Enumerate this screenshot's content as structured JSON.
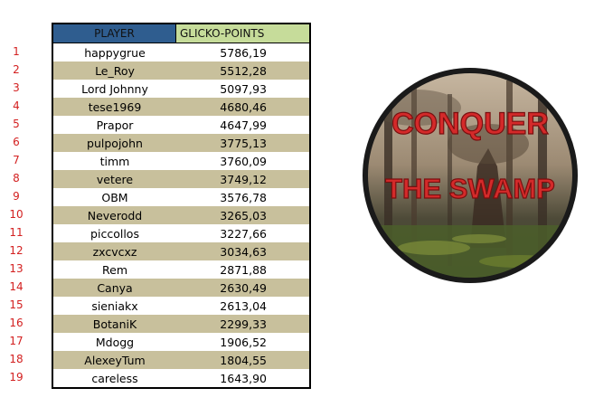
{
  "table": {
    "header": {
      "player": "PLAYER",
      "points": "GLICKO-POINTS"
    },
    "rows": [
      {
        "rank": "1",
        "player": "happygrue",
        "points": "5786,19"
      },
      {
        "rank": "2",
        "player": "Le_Roy",
        "points": "5512,28"
      },
      {
        "rank": "3",
        "player": "Lord Johnny",
        "points": "5097,93"
      },
      {
        "rank": "4",
        "player": "tese1969",
        "points": "4680,46"
      },
      {
        "rank": "5",
        "player": "Prapor",
        "points": "4647,99"
      },
      {
        "rank": "6",
        "player": "pulpojohn",
        "points": "3775,13"
      },
      {
        "rank": "7",
        "player": "timm",
        "points": "3760,09"
      },
      {
        "rank": "8",
        "player": "vetere",
        "points": "3749,12"
      },
      {
        "rank": "9",
        "player": "OBM",
        "points": "3576,78"
      },
      {
        "rank": "10",
        "player": "Neverodd",
        "points": "3265,03"
      },
      {
        "rank": "11",
        "player": "piccollos",
        "points": "3227,66"
      },
      {
        "rank": "12",
        "player": "zxcvcxz",
        "points": "3034,63"
      },
      {
        "rank": "13",
        "player": "Rem",
        "points": "2871,88"
      },
      {
        "rank": "14",
        "player": "Canya",
        "points": "2630,49"
      },
      {
        "rank": "15",
        "player": "sieniakx",
        "points": "2613,04"
      },
      {
        "rank": "16",
        "player": "BotaniK",
        "points": "2299,33"
      },
      {
        "rank": "17",
        "player": "Mdogg",
        "points": "1906,52"
      },
      {
        "rank": "18",
        "player": "AlexeyTum",
        "points": "1804,55"
      },
      {
        "rank": "19",
        "player": "careless",
        "points": "1643,90"
      }
    ]
  },
  "logo": {
    "line1": "CONQUER",
    "line2": "THE SWAMP",
    "text_color": "#d42a2a"
  }
}
